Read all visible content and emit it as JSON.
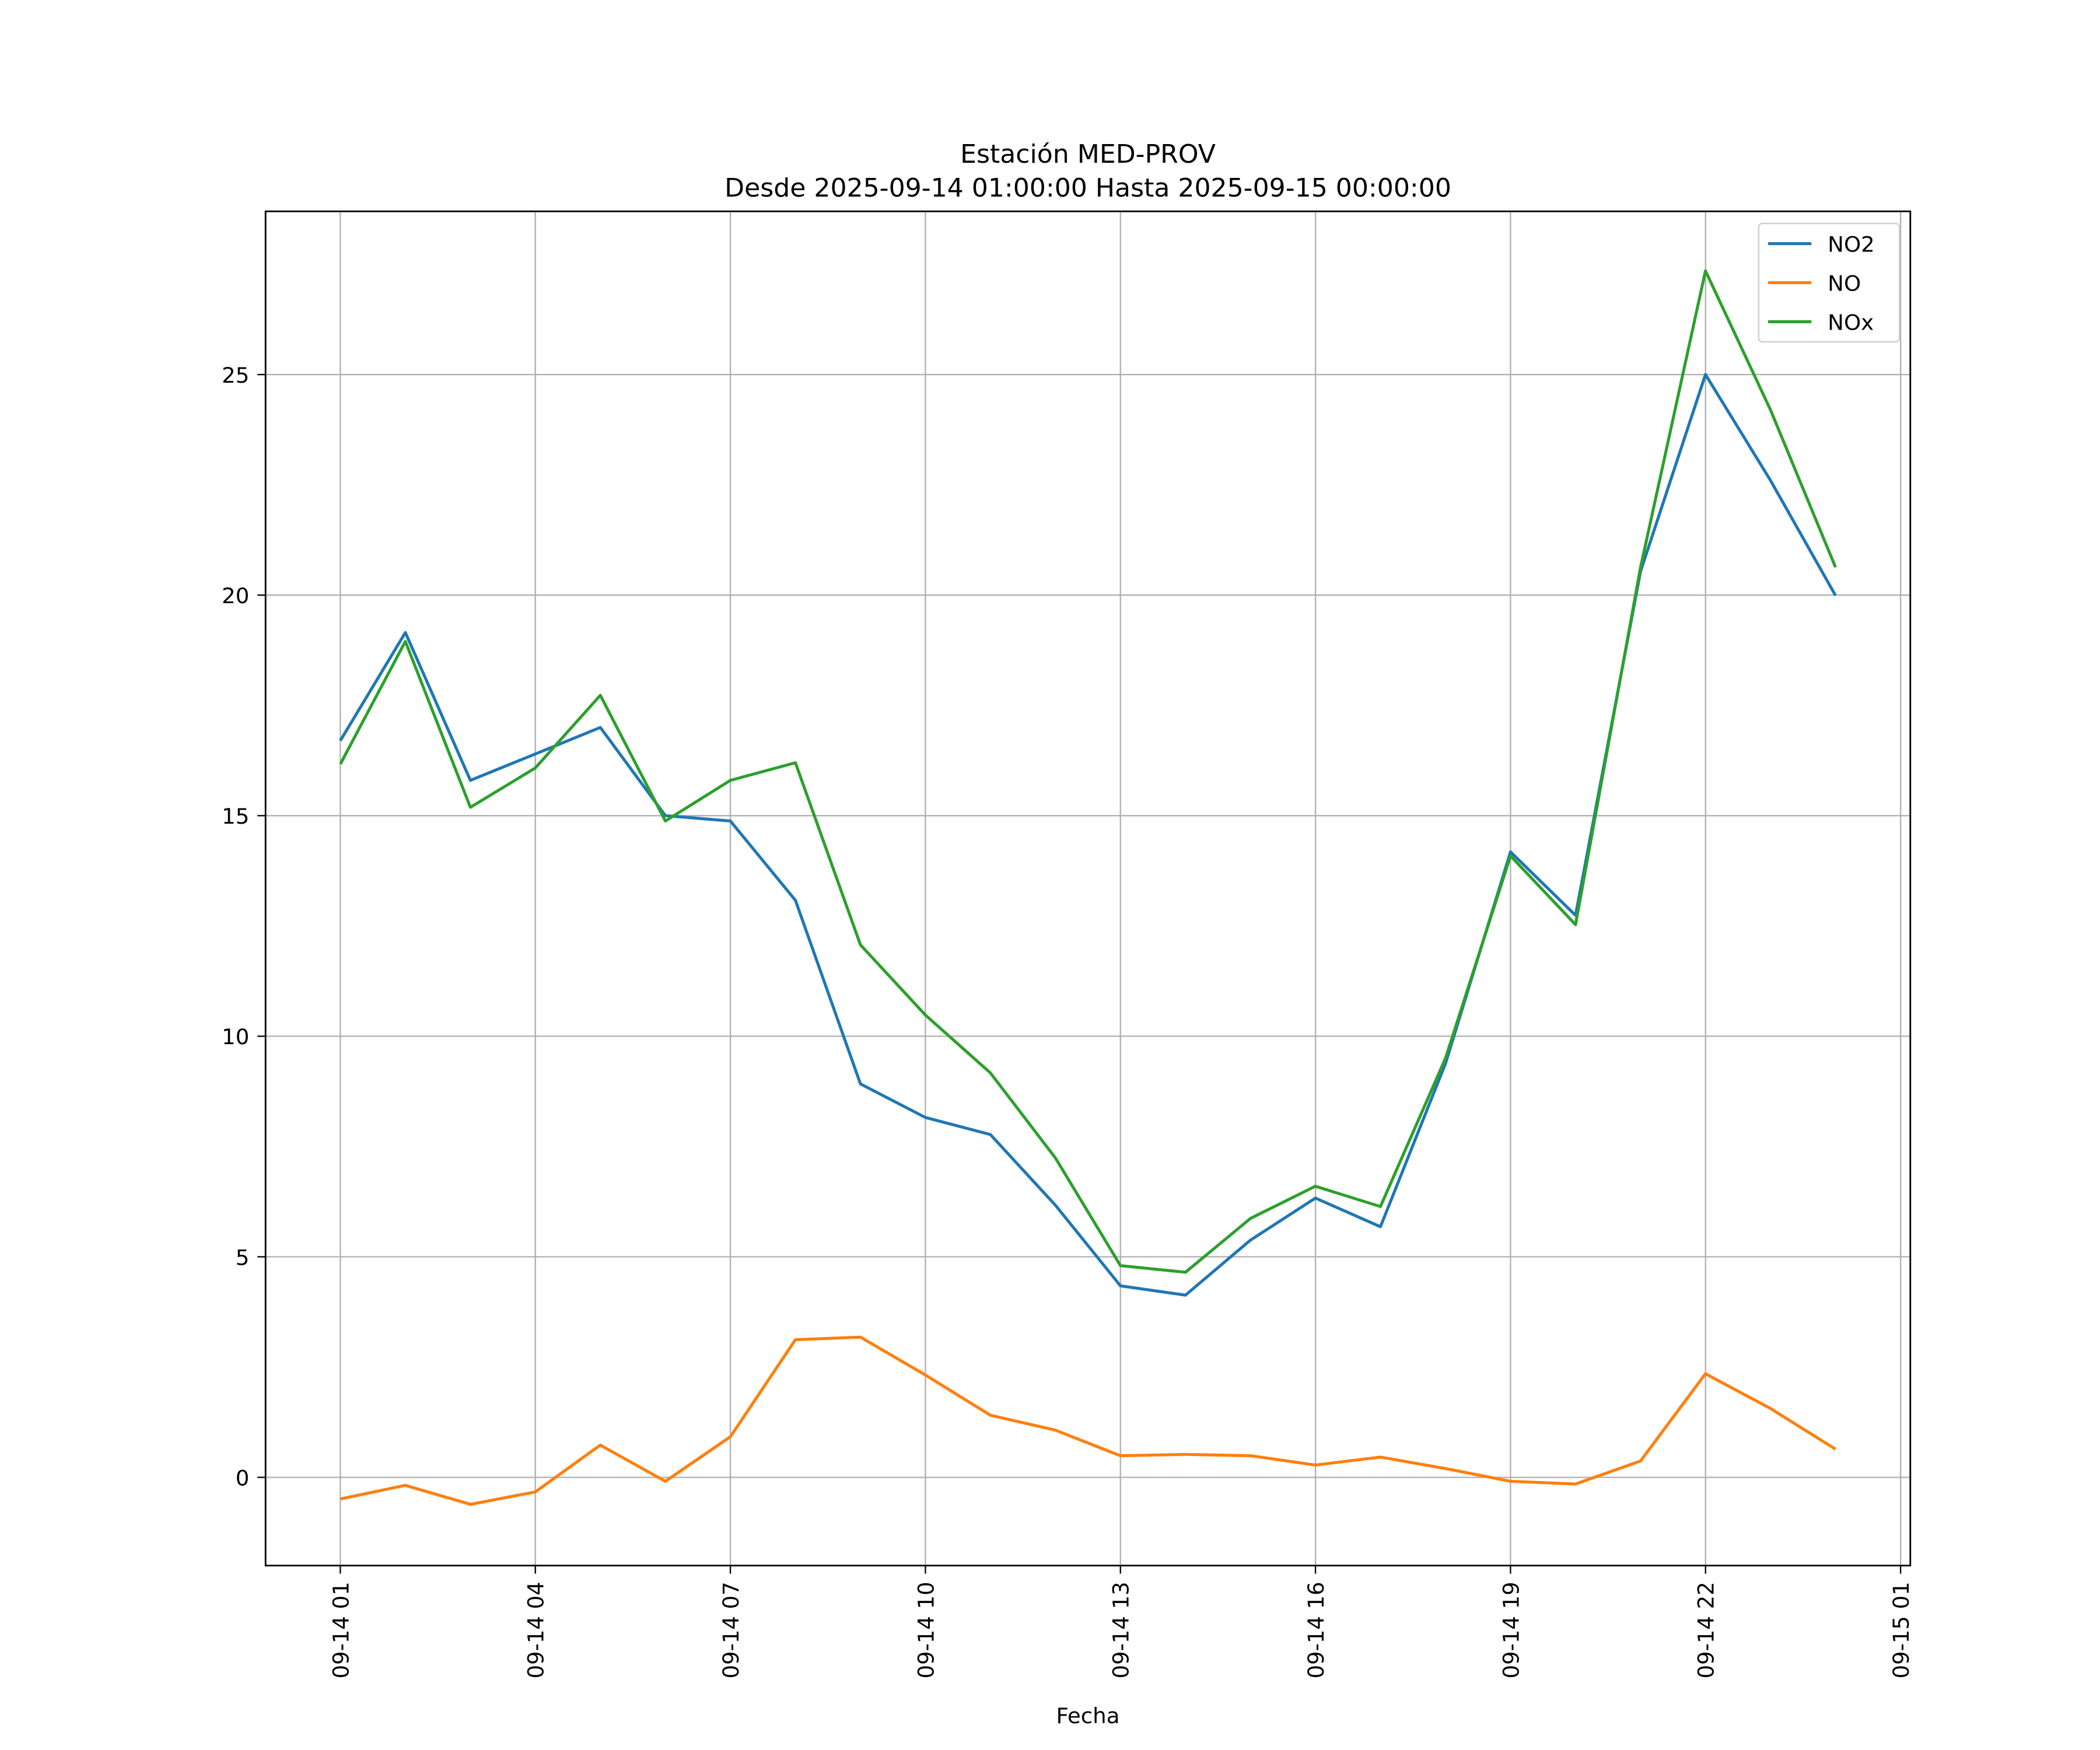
{
  "chart_data": {
    "type": "line",
    "title": "Estación MED-PROV",
    "subtitle": "Desde 2025-09-14 01:00:00 Hasta 2025-09-15 00:00:00",
    "xlabel": "Fecha",
    "ylabel": "",
    "x_unit": "hours since 2025-09-14 00:00",
    "x": [
      1,
      2,
      3,
      4,
      5,
      6,
      7,
      8,
      9,
      10,
      11,
      12,
      13,
      14,
      15,
      16,
      17,
      18,
      19,
      20,
      21,
      22,
      23,
      24
    ],
    "xlim": [
      -0.15,
      25.15
    ],
    "ylim": [
      -2.0,
      28.7
    ],
    "xticks": [
      1,
      4,
      7,
      10,
      13,
      16,
      19,
      22,
      25
    ],
    "xtick_labels": [
      "09-14 01",
      "09-14 04",
      "09-14 07",
      "09-14 10",
      "09-14 13",
      "09-14 16",
      "09-14 19",
      "09-14 22",
      "09-15 01"
    ],
    "yticks": [
      0,
      5,
      10,
      15,
      20,
      25
    ],
    "ytick_labels": [
      "0",
      "5",
      "10",
      "15",
      "20",
      "25"
    ],
    "grid": true,
    "legend_position": "top-right",
    "series": [
      {
        "name": "NO2",
        "color": "#1f77b4",
        "values": [
          16.7,
          19.15,
          15.8,
          16.4,
          17.0,
          15.0,
          14.88,
          13.08,
          8.92,
          8.16,
          7.77,
          6.17,
          4.34,
          4.13,
          5.38,
          6.33,
          5.68,
          9.38,
          14.18,
          12.74,
          20.54,
          25.0,
          22.6,
          19.99
        ]
      },
      {
        "name": "NO",
        "color": "#ff7f0e",
        "values": [
          -0.49,
          -0.18,
          -0.61,
          -0.33,
          0.73,
          -0.09,
          0.92,
          3.12,
          3.18,
          2.32,
          1.41,
          1.07,
          0.49,
          0.52,
          0.49,
          0.28,
          0.46,
          0.2,
          -0.09,
          -0.15,
          0.37,
          2.35,
          1.56,
          0.64
        ]
      },
      {
        "name": "NOx",
        "color": "#2ca02c",
        "values": [
          16.17,
          18.95,
          15.19,
          16.08,
          17.73,
          14.88,
          15.8,
          16.2,
          12.07,
          10.48,
          9.17,
          7.24,
          4.8,
          4.65,
          5.87,
          6.6,
          6.14,
          9.5,
          14.09,
          12.53,
          20.63,
          27.35,
          24.2,
          20.63
        ]
      }
    ]
  }
}
